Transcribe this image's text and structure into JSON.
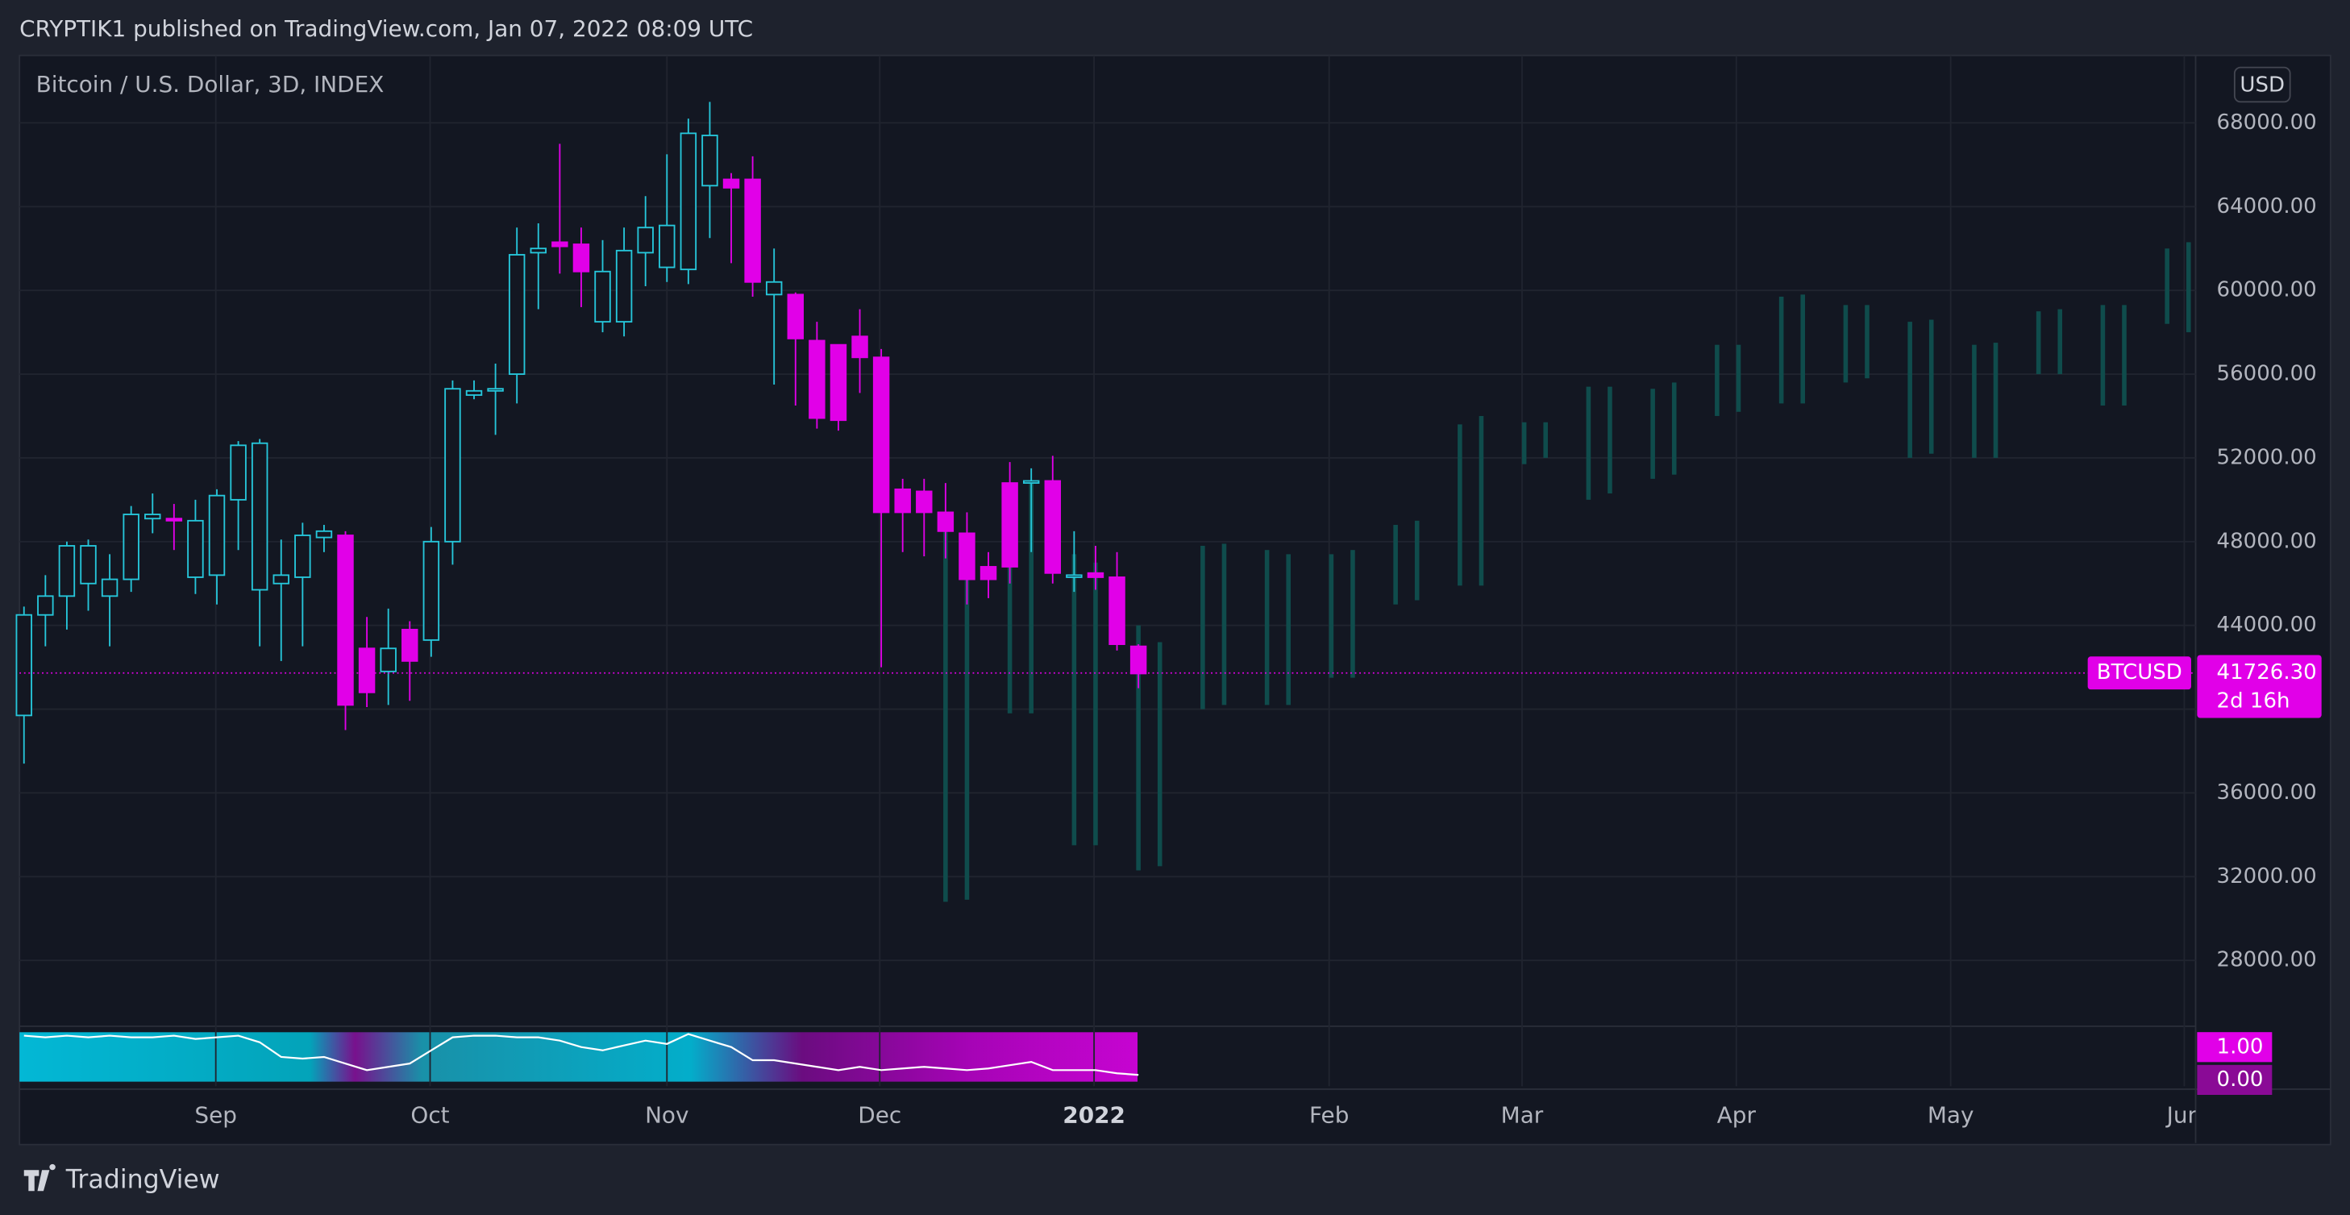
{
  "header": "CRYPTIK1 published on TradingView.com, Jan 07, 2022 08:09 UTC",
  "brand": "TradingView",
  "chart_data": {
    "type": "candlestick",
    "title": "Bitcoin / U.S. Dollar, 3D, INDEX",
    "currency": "USD",
    "symbol": "BTCUSD",
    "last": {
      "value": 41726.3,
      "label": "41726.30"
    },
    "countdown": "2d 16h",
    "up_color": "#26c6da",
    "down_color": "#e100e8",
    "projection_color": "#0f4c4c",
    "grid": true,
    "open": [
      39700,
      44500,
      45400,
      46000,
      45400,
      46200,
      49100,
      49100,
      46300,
      46400,
      50000,
      45700,
      46000,
      46300,
      48200,
      48300,
      42900,
      41800,
      43800,
      43300,
      48000,
      55000,
      55200,
      56000,
      61800,
      62300,
      62200,
      58500,
      58500,
      61800,
      61100,
      61000,
      65000,
      65300,
      65300,
      59800,
      59800,
      57600,
      57400,
      57800,
      56800,
      50500,
      50400,
      49400,
      48400,
      46800,
      50800,
      50800,
      50900,
      46300,
      46500,
      46300,
      43000
    ],
    "high": [
      44900,
      46400,
      48000,
      48100,
      47400,
      49700,
      50300,
      49800,
      50000,
      50500,
      52800,
      52900,
      48100,
      48900,
      48800,
      48500,
      44400,
      44800,
      44200,
      48700,
      55700,
      55700,
      56500,
      63000,
      63200,
      67000,
      63000,
      62400,
      63000,
      64500,
      66500,
      68200,
      69000,
      65600,
      66400,
      62000,
      59900,
      58500,
      57400,
      59100,
      57200,
      51000,
      51000,
      50800,
      49400,
      47500,
      51800,
      51500,
      52100,
      48500,
      47800,
      47500,
      43100
    ],
    "low": [
      37400,
      43000,
      43800,
      44700,
      43000,
      45600,
      48400,
      47600,
      45500,
      45000,
      47600,
      43000,
      42300,
      43000,
      47500,
      39000,
      40100,
      40200,
      40400,
      42500,
      46900,
      54800,
      53100,
      54600,
      59100,
      60800,
      59200,
      58000,
      57800,
      60200,
      60400,
      60300,
      62500,
      61300,
      59700,
      55500,
      54500,
      53400,
      53300,
      55100,
      42000,
      47500,
      47300,
      47200,
      45000,
      45300,
      46000,
      47500,
      46000,
      45600,
      45700,
      42800,
      41000
    ],
    "close": [
      44500,
      45400,
      47800,
      47800,
      46200,
      49300,
      49300,
      49000,
      49000,
      50200,
      52600,
      52700,
      46400,
      48300,
      48500,
      40200,
      40800,
      42900,
      42300,
      48000,
      55300,
      55200,
      55300,
      61700,
      62000,
      62100,
      60900,
      60900,
      61900,
      63000,
      63100,
      67500,
      67400,
      64900,
      60400,
      60400,
      57700,
      53900,
      53800,
      56800,
      49400,
      49400,
      49400,
      48500,
      46200,
      46200,
      46800,
      50900,
      46500,
      46400,
      46300,
      43100,
      41700
    ],
    "projection": {
      "x": [
        43,
        44,
        46,
        47,
        49,
        50,
        52,
        53,
        55,
        56,
        58,
        59,
        61,
        62,
        64,
        65,
        67,
        68,
        70,
        71,
        73,
        74,
        76,
        77,
        79,
        80,
        82,
        83,
        85,
        86,
        88,
        89,
        91,
        92,
        94,
        95,
        97,
        98,
        100,
        101
      ],
      "high": [
        49000,
        48400,
        50500,
        50800,
        47400,
        47000,
        44000,
        43200,
        47800,
        47900,
        47600,
        47400,
        47400,
        47600,
        48800,
        49000,
        53600,
        54000,
        53700,
        53700,
        55400,
        55400,
        55300,
        55600,
        57400,
        57400,
        59700,
        59800,
        59300,
        59300,
        58500,
        58600,
        57400,
        57500,
        59000,
        59100,
        59300,
        59300,
        62000,
        62300
      ],
      "low": [
        30800,
        30900,
        39800,
        39800,
        33500,
        33500,
        32300,
        32500,
        40000,
        40200,
        40200,
        40200,
        41500,
        41500,
        45000,
        45200,
        45900,
        45900,
        51700,
        52000,
        50000,
        50300,
        51000,
        51200,
        54000,
        54200,
        54600,
        54600,
        55600,
        55800,
        52000,
        52200,
        52000,
        52000,
        56000,
        56000,
        54500,
        54500,
        58400,
        58000
      ]
    },
    "xlim": [
      -0.21,
      101.33
    ],
    "xticks": [
      {
        "value": 8.95,
        "label": "Sep"
      },
      {
        "value": 18.95,
        "label": "Oct"
      },
      {
        "value": 30,
        "label": "Nov"
      },
      {
        "value": 39.93,
        "label": "Dec"
      },
      {
        "value": 49.93,
        "label": "2022"
      },
      {
        "value": 60.9,
        "label": "Feb"
      },
      {
        "value": 69.9,
        "label": "Mar"
      },
      {
        "value": 79.9,
        "label": "Apr"
      },
      {
        "value": 89.9,
        "label": "May"
      },
      {
        "value": 100.8,
        "label": "Jun"
      }
    ],
    "ylim": [
      25000,
      71220
    ],
    "yticks": [
      {
        "value": 28000,
        "label": "28000.00"
      },
      {
        "value": 32000,
        "label": "32000.00"
      },
      {
        "value": 36000,
        "label": "36000.00"
      },
      {
        "value": 40000,
        "label": "40000.00"
      },
      {
        "value": 44000,
        "label": "44000.00"
      },
      {
        "value": 48000,
        "label": "48000.00"
      },
      {
        "value": 52000,
        "label": "52000.00"
      },
      {
        "value": 56000,
        "label": "56000.00"
      },
      {
        "value": 60000,
        "label": "60000.00"
      },
      {
        "value": 64000,
        "label": "64000.00"
      },
      {
        "value": 68000,
        "label": "68000.00"
      }
    ],
    "indicator": {
      "color": "#ffffff",
      "ylim": [
        -0.1,
        1.5
      ],
      "yticks": [
        {
          "value": 0,
          "label": "0.00"
        },
        {
          "value": 1,
          "label": "1.00"
        }
      ],
      "values": [
        1.35,
        1.3,
        1.35,
        1.3,
        1.35,
        1.3,
        1.3,
        1.35,
        1.25,
        1.3,
        1.35,
        1.15,
        0.7,
        0.65,
        0.7,
        0.5,
        0.3,
        0.4,
        0.5,
        0.9,
        1.3,
        1.35,
        1.35,
        1.3,
        1.3,
        1.2,
        1.0,
        0.9,
        1.05,
        1.2,
        1.1,
        1.4,
        1.2,
        1.0,
        0.6,
        0.6,
        0.5,
        0.4,
        0.3,
        0.4,
        0.3,
        0.35,
        0.4,
        0.35,
        0.3,
        0.35,
        0.45,
        0.55,
        0.3,
        0.3,
        0.3,
        0.2,
        0.15
      ]
    }
  }
}
